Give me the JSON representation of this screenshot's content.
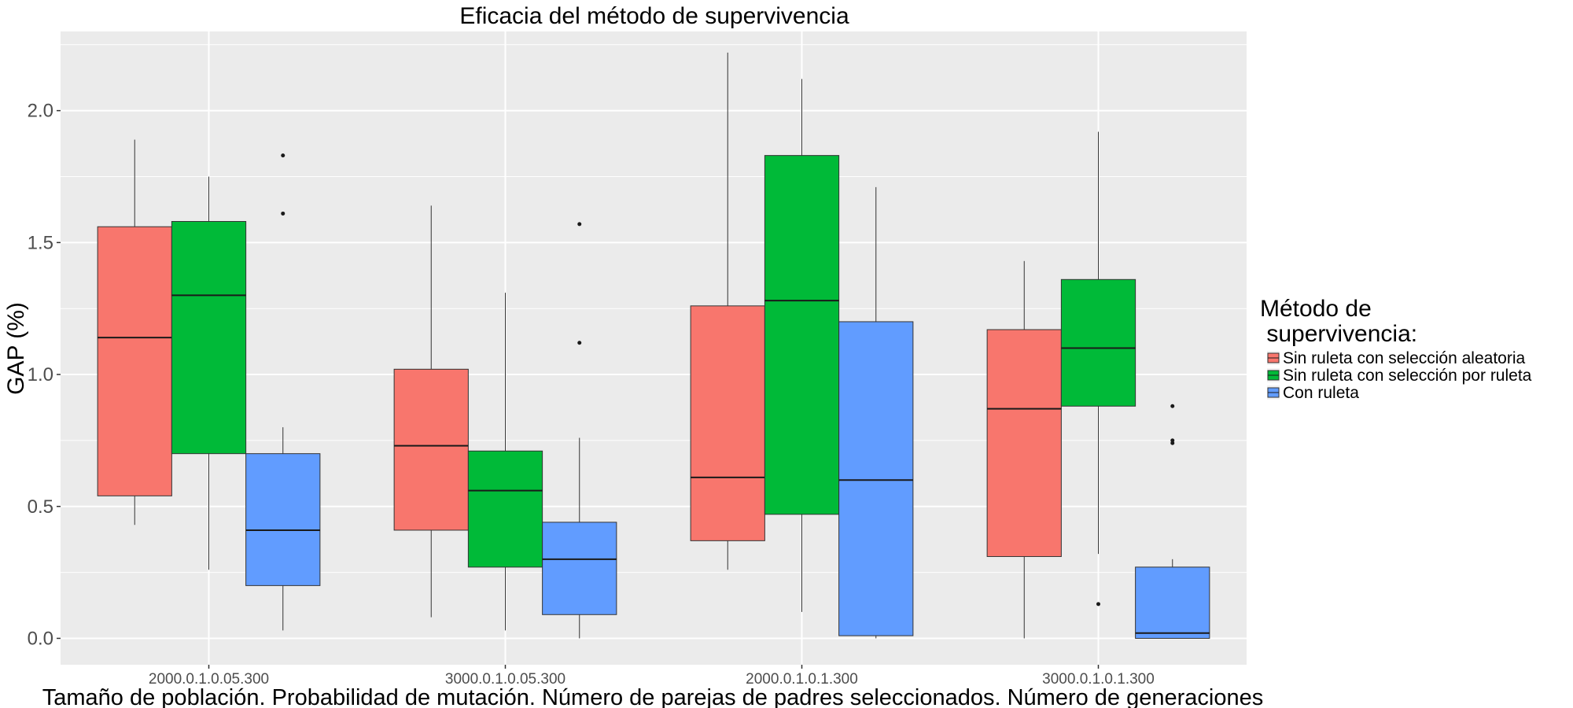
{
  "chart_data": {
    "type": "boxplot",
    "title": "Eficacia del método de supervivencia",
    "xlabel": "Tamaño de población. Probabilidad de mutación. Número de parejas de padres seleccionados. Número de generaciones",
    "ylabel": "GAP (%)",
    "ylim": [
      -0.1,
      2.3
    ],
    "y_ticks": [
      0.0,
      0.5,
      1.0,
      1.5,
      2.0
    ],
    "y_tick_labels": [
      "0.0",
      "0.5",
      "1.0",
      "1.5",
      "2.0"
    ],
    "categories": [
      "2000.0.1.0.05.300",
      "3000.0.1.0.05.300",
      "2000.0.1.0.1.300",
      "3000.0.1.0.1.300"
    ],
    "grid": true,
    "legend": {
      "title_line1": "Método de",
      "title_line2": " supervivencia:",
      "position": "right"
    },
    "series": [
      {
        "name": "Sin ruleta con selección aleatoria",
        "color": "#F8766D",
        "boxes": [
          {
            "min": 0.43,
            "q1": 0.54,
            "median": 1.14,
            "q3": 1.56,
            "max": 1.89,
            "outliers": []
          },
          {
            "min": 0.08,
            "q1": 0.41,
            "median": 0.73,
            "q3": 1.02,
            "max": 1.64,
            "outliers": []
          },
          {
            "min": 0.26,
            "q1": 0.37,
            "median": 0.61,
            "q3": 1.26,
            "max": 2.22,
            "outliers": []
          },
          {
            "min": 0.0,
            "q1": 0.31,
            "median": 0.87,
            "q3": 1.17,
            "max": 1.43,
            "outliers": []
          }
        ]
      },
      {
        "name": "Sin ruleta con selección por ruleta",
        "color": "#00BA38",
        "boxes": [
          {
            "min": 0.26,
            "q1": 0.7,
            "median": 1.3,
            "q3": 1.58,
            "max": 1.75,
            "outliers": []
          },
          {
            "min": 0.03,
            "q1": 0.27,
            "median": 0.56,
            "q3": 0.71,
            "max": 1.31,
            "outliers": []
          },
          {
            "min": 0.1,
            "q1": 0.47,
            "median": 1.28,
            "q3": 1.83,
            "max": 2.12,
            "outliers": []
          },
          {
            "min": 0.32,
            "q1": 0.88,
            "median": 1.1,
            "q3": 1.36,
            "max": 1.92,
            "outliers": [
              0.13
            ]
          }
        ]
      },
      {
        "name": "Con ruleta",
        "color": "#619CFF",
        "boxes": [
          {
            "min": 0.03,
            "q1": 0.2,
            "median": 0.41,
            "q3": 0.7,
            "max": 0.8,
            "outliers": [
              1.61,
              1.83
            ]
          },
          {
            "min": 0.0,
            "q1": 0.09,
            "median": 0.3,
            "q3": 0.44,
            "max": 0.76,
            "outliers": [
              1.12,
              1.57
            ]
          },
          {
            "min": 0.0,
            "q1": 0.01,
            "median": 0.6,
            "q3": 1.2,
            "max": 1.71,
            "outliers": []
          },
          {
            "min": 0.0,
            "q1": 0.0,
            "median": 0.02,
            "q3": 0.27,
            "max": 0.3,
            "outliers": [
              0.74,
              0.75,
              0.88
            ]
          }
        ]
      }
    ]
  }
}
